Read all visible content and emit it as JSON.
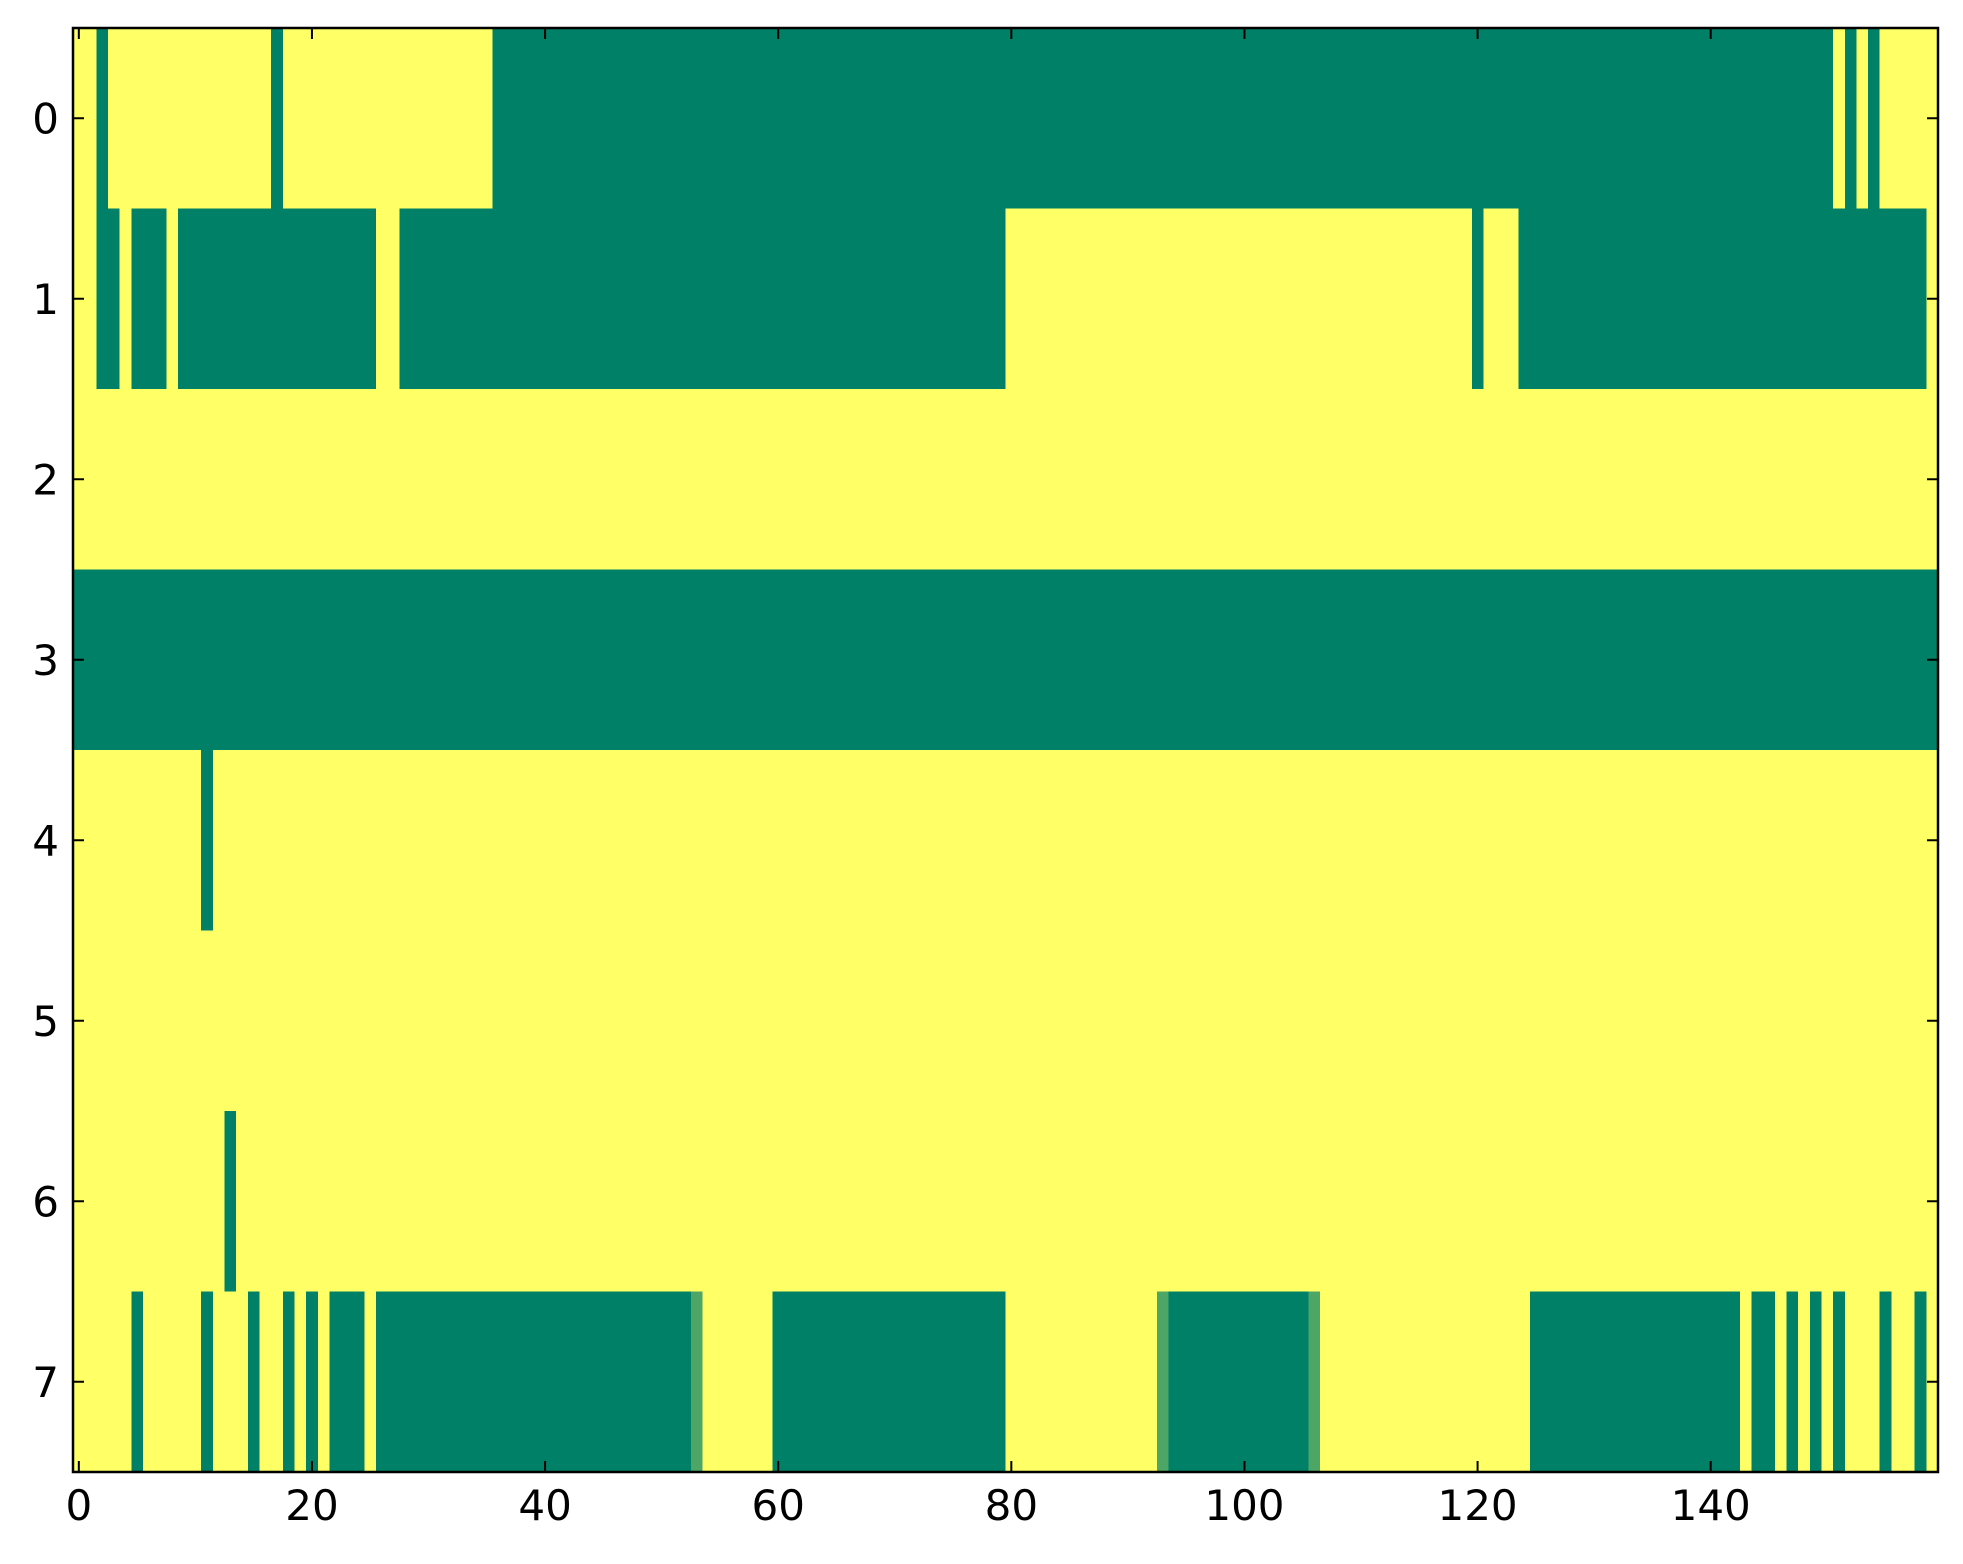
{
  "chart_data": {
    "type": "heatmap",
    "colorscale": [
      "#008066",
      "#ffff66"
    ],
    "xlim": [
      -0.5,
      159.5
    ],
    "ylim": [
      7.5,
      -0.5
    ],
    "xticks": [
      0,
      20,
      40,
      60,
      80,
      100,
      120,
      140
    ],
    "yticks": [
      0,
      1,
      2,
      3,
      4,
      5,
      6,
      7
    ],
    "z": [
      [
        1,
        1,
        0,
        1,
        1,
        1,
        1,
        1,
        1,
        1,
        1,
        1,
        1,
        1,
        1,
        1,
        1,
        0,
        1,
        1,
        1,
        1,
        1,
        1,
        1,
        1,
        1,
        1,
        1,
        1,
        1,
        1,
        1,
        1,
        1,
        1,
        0,
        0,
        0,
        0,
        0,
        0,
        0,
        0,
        0,
        0,
        0,
        0,
        0,
        0,
        0,
        0,
        0,
        0,
        0,
        0,
        0,
        0,
        0,
        0,
        0,
        0,
        0,
        0,
        0,
        0,
        0,
        0,
        0,
        0,
        0,
        0,
        0,
        0,
        0,
        0,
        0,
        0,
        0,
        0,
        0,
        0,
        0,
        0,
        0,
        0,
        0,
        0,
        0,
        0,
        0,
        0,
        0,
        0,
        0,
        0,
        0,
        0,
        0,
        0,
        0,
        0,
        0,
        0,
        0,
        0,
        0,
        0,
        0,
        0,
        0,
        0,
        0,
        0,
        0,
        0,
        0,
        0,
        0,
        0,
        0,
        0,
        0,
        0,
        0,
        0,
        0,
        0,
        0,
        0,
        0,
        0,
        0,
        0,
        0,
        0,
        0,
        0,
        0,
        0,
        0,
        0,
        0,
        0,
        0,
        0,
        0,
        0,
        0,
        0,
        0,
        1,
        0,
        1,
        0,
        1,
        1,
        1,
        1,
        1
      ],
      [
        1,
        1,
        0,
        0,
        1,
        0,
        0,
        0,
        1,
        0,
        0,
        0,
        0,
        0,
        0,
        0,
        0,
        0,
        0,
        0,
        0,
        0,
        0,
        0,
        0,
        0,
        1,
        1,
        0,
        0,
        0,
        0,
        0,
        0,
        0,
        0,
        0,
        0,
        0,
        0,
        0,
        0,
        0,
        0,
        0,
        0,
        0,
        0,
        0,
        0,
        0,
        0,
        0,
        0,
        0,
        0,
        0,
        0,
        0,
        0,
        0,
        0,
        0,
        0,
        0,
        0,
        0,
        0,
        0,
        0,
        0,
        0,
        0,
        0,
        0,
        0,
        0,
        0,
        0,
        0,
        1,
        1,
        1,
        1,
        1,
        1,
        1,
        1,
        1,
        1,
        1,
        1,
        1,
        1,
        1,
        1,
        1,
        1,
        1,
        1,
        1,
        1,
        1,
        1,
        1,
        1,
        1,
        1,
        1,
        1,
        1,
        1,
        1,
        1,
        1,
        1,
        1,
        1,
        1,
        1,
        0,
        1,
        1,
        1,
        0,
        0,
        0,
        0,
        0,
        0,
        0,
        0,
        0,
        0,
        0,
        0,
        0,
        0,
        0,
        0,
        0,
        0,
        0,
        0,
        0,
        0,
        0,
        0,
        0,
        0,
        0,
        0,
        0,
        0,
        0,
        0,
        0,
        0,
        0,
        1
      ],
      [
        1,
        1,
        1,
        1,
        1,
        1,
        1,
        1,
        1,
        1,
        1,
        1,
        1,
        1,
        1,
        1,
        1,
        1,
        1,
        1,
        1,
        1,
        1,
        1,
        1,
        1,
        1,
        1,
        1,
        1,
        1,
        1,
        1,
        1,
        1,
        1,
        1,
        1,
        1,
        1,
        1,
        1,
        1,
        1,
        1,
        1,
        1,
        1,
        1,
        1,
        1,
        1,
        1,
        1,
        1,
        1,
        1,
        1,
        1,
        1,
        1,
        1,
        1,
        1,
        1,
        1,
        1,
        1,
        1,
        1,
        1,
        1,
        1,
        1,
        1,
        1,
        1,
        1,
        1,
        1,
        1,
        1,
        1,
        1,
        1,
        1,
        1,
        1,
        1,
        1,
        1,
        1,
        1,
        1,
        1,
        1,
        1,
        1,
        1,
        1,
        1,
        1,
        1,
        1,
        1,
        1,
        1,
        1,
        1,
        1,
        1,
        1,
        1,
        1,
        1,
        1,
        1,
        1,
        1,
        1,
        1,
        1,
        1,
        1,
        1,
        1,
        1,
        1,
        1,
        1,
        1,
        1,
        1,
        1,
        1,
        1,
        1,
        1,
        1,
        1,
        1,
        1,
        1,
        1,
        1,
        1,
        1,
        1,
        1,
        1,
        1,
        1,
        1,
        1,
        1,
        1,
        1,
        1,
        1,
        1
      ],
      [
        0,
        0,
        0,
        0,
        0,
        0,
        0,
        0,
        0,
        0,
        0,
        0,
        0,
        0,
        0,
        0,
        0,
        0,
        0,
        0,
        0,
        0,
        0,
        0,
        0,
        0,
        0,
        0,
        0,
        0,
        0,
        0,
        0,
        0,
        0,
        0,
        0,
        0,
        0,
        0,
        0,
        0,
        0,
        0,
        0,
        0,
        0,
        0,
        0,
        0,
        0,
        0,
        0,
        0,
        0,
        0,
        0,
        0,
        0,
        0,
        0,
        0,
        0,
        0,
        0,
        0,
        0,
        0,
        0,
        0,
        0,
        0,
        0,
        0,
        0,
        0,
        0,
        0,
        0,
        0,
        0,
        0,
        0,
        0,
        0,
        0,
        0,
        0,
        0,
        0,
        0,
        0,
        0,
        0,
        0,
        0,
        0,
        0,
        0,
        0,
        0,
        0,
        0,
        0,
        0,
        0,
        0,
        0,
        0,
        0,
        0,
        0,
        0,
        0,
        0,
        0,
        0,
        0,
        0,
        0,
        0,
        0,
        0,
        0,
        0,
        0,
        0,
        0,
        0,
        0,
        0,
        0,
        0,
        0,
        0,
        0,
        0,
        0,
        0,
        0,
        0,
        0,
        0,
        0,
        0,
        0,
        0,
        0,
        0,
        0,
        0,
        0,
        0,
        0,
        0,
        0,
        0,
        0,
        0,
        0
      ],
      [
        1,
        1,
        1,
        1,
        1,
        1,
        1,
        1,
        1,
        1,
        1,
        0,
        1,
        1,
        1,
        1,
        1,
        1,
        1,
        1,
        1,
        1,
        1,
        1,
        1,
        1,
        1,
        1,
        1,
        1,
        1,
        1,
        1,
        1,
        1,
        1,
        1,
        1,
        1,
        1,
        1,
        1,
        1,
        1,
        1,
        1,
        1,
        1,
        1,
        1,
        1,
        1,
        1,
        1,
        1,
        1,
        1,
        1,
        1,
        1,
        1,
        1,
        1,
        1,
        1,
        1,
        1,
        1,
        1,
        1,
        1,
        1,
        1,
        1,
        1,
        1,
        1,
        1,
        1,
        1,
        1,
        1,
        1,
        1,
        1,
        1,
        1,
        1,
        1,
        1,
        1,
        1,
        1,
        1,
        1,
        1,
        1,
        1,
        1,
        1,
        1,
        1,
        1,
        1,
        1,
        1,
        1,
        1,
        1,
        1,
        1,
        1,
        1,
        1,
        1,
        1,
        1,
        1,
        1,
        1,
        1,
        1,
        1,
        1,
        1,
        1,
        1,
        1,
        1,
        1,
        1,
        1,
        1,
        1,
        1,
        1,
        1,
        1,
        1,
        1,
        1,
        1,
        1,
        1,
        1,
        1,
        1,
        1,
        1,
        1,
        1,
        1,
        1,
        1,
        1,
        1,
        1,
        1,
        1,
        1
      ],
      [
        1,
        1,
        1,
        1,
        1,
        1,
        1,
        1,
        1,
        1,
        1,
        1,
        1,
        1,
        1,
        1,
        1,
        1,
        1,
        1,
        1,
        1,
        1,
        1,
        1,
        1,
        1,
        1,
        1,
        1,
        1,
        1,
        1,
        1,
        1,
        1,
        1,
        1,
        1,
        1,
        1,
        1,
        1,
        1,
        1,
        1,
        1,
        1,
        1,
        1,
        1,
        1,
        1,
        1,
        1,
        1,
        1,
        1,
        1,
        1,
        1,
        1,
        1,
        1,
        1,
        1,
        1,
        1,
        1,
        1,
        1,
        1,
        1,
        1,
        1,
        1,
        1,
        1,
        1,
        1,
        1,
        1,
        1,
        1,
        1,
        1,
        1,
        1,
        1,
        1,
        1,
        1,
        1,
        1,
        1,
        1,
        1,
        1,
        1,
        1,
        1,
        1,
        1,
        1,
        1,
        1,
        1,
        1,
        1,
        1,
        1,
        1,
        1,
        1,
        1,
        1,
        1,
        1,
        1,
        1,
        1,
        1,
        1,
        1,
        1,
        1,
        1,
        1,
        1,
        1,
        1,
        1,
        1,
        1,
        1,
        1,
        1,
        1,
        1,
        1,
        1,
        1,
        1,
        1,
        1,
        1,
        1,
        1,
        1,
        1,
        1,
        1,
        1,
        1,
        1,
        1,
        1,
        1,
        1,
        1
      ],
      [
        1,
        1,
        1,
        1,
        1,
        1,
        1,
        1,
        1,
        1,
        1,
        1,
        1,
        0,
        1,
        1,
        1,
        1,
        1,
        1,
        1,
        1,
        1,
        1,
        1,
        1,
        1,
        1,
        1,
        1,
        1,
        1,
        1,
        1,
        1,
        1,
        1,
        1,
        1,
        1,
        1,
        1,
        1,
        1,
        1,
        1,
        1,
        1,
        1,
        1,
        1,
        1,
        1,
        1,
        1,
        1,
        1,
        1,
        1,
        1,
        1,
        1,
        1,
        1,
        1,
        1,
        1,
        1,
        1,
        1,
        1,
        1,
        1,
        1,
        1,
        1,
        1,
        1,
        1,
        1,
        1,
        1,
        1,
        1,
        1,
        1,
        1,
        1,
        1,
        1,
        1,
        1,
        1,
        1,
        1,
        1,
        1,
        1,
        1,
        1,
        1,
        1,
        1,
        1,
        1,
        1,
        1,
        1,
        1,
        1,
        1,
        1,
        1,
        1,
        1,
        1,
        1,
        1,
        1,
        1,
        1,
        1,
        1,
        1,
        1,
        1,
        1,
        1,
        1,
        1,
        1,
        1,
        1,
        1,
        1,
        1,
        1,
        1,
        1,
        1,
        1,
        1,
        1,
        1,
        1,
        1,
        1,
        1,
        1,
        1,
        1,
        1,
        1,
        1,
        1,
        1,
        1,
        1,
        1,
        1
      ],
      [
        1,
        1,
        1,
        1,
        1,
        0,
        1,
        1,
        1,
        1,
        1,
        0,
        1,
        1,
        1,
        0,
        1,
        1,
        0,
        1,
        0,
        1,
        0,
        0,
        0,
        1,
        0,
        0,
        0,
        0,
        0,
        0,
        0,
        0,
        0,
        0,
        0,
        0,
        0,
        0,
        0,
        0,
        0,
        0,
        0,
        0,
        0,
        0,
        0,
        0,
        0,
        0,
        0,
        0.3,
        1,
        1,
        1,
        1,
        1,
        1,
        0,
        0,
        0,
        0,
        0,
        0,
        0,
        0,
        0,
        0,
        0,
        0,
        0,
        0,
        0,
        0,
        0,
        0,
        0,
        0,
        1,
        1,
        1,
        1,
        1,
        1,
        1,
        1,
        1,
        1,
        1,
        1,
        1,
        0.3,
        0,
        0,
        0,
        0,
        0,
        0,
        0,
        0,
        0,
        0,
        0,
        0,
        0.3,
        1,
        1,
        1,
        1,
        1,
        1,
        1,
        1,
        1,
        1,
        1,
        1,
        1,
        1,
        1,
        1,
        1,
        1,
        0,
        0,
        0,
        0,
        0,
        0,
        0,
        0,
        0,
        0,
        0,
        0,
        0,
        0,
        0,
        0,
        0,
        0,
        1,
        0,
        0,
        1,
        0,
        1,
        0,
        1,
        0,
        1,
        1,
        1,
        0,
        1,
        1,
        0,
        1
      ]
    ]
  }
}
